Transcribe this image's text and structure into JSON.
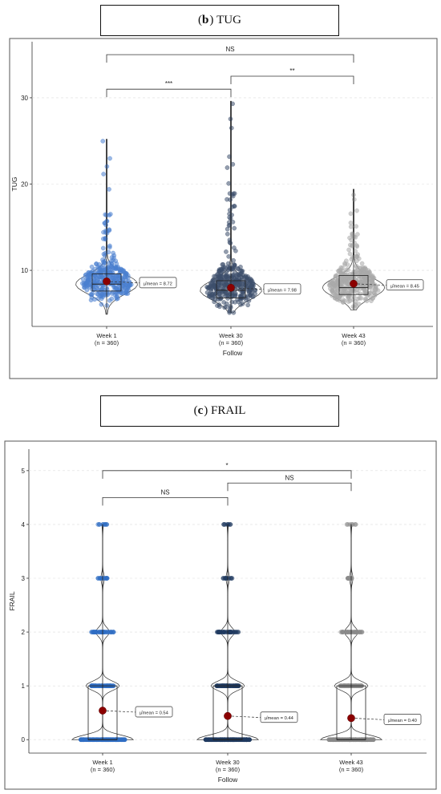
{
  "chart_data": [
    {
      "type": "violin-box-scatter",
      "panel_letter": "b",
      "title": "TUG",
      "xlabel": "Follow",
      "ylabel": "TUG",
      "ylim": [
        3.5,
        36.5
      ],
      "yticks": [
        10,
        20,
        30
      ],
      "categories": [
        "Week 1",
        "Week 30",
        "Week 43"
      ],
      "counts": [
        "(n = 360)",
        "(n = 360)",
        "(n = 360)"
      ],
      "point_colors": [
        "#4a7fcf",
        "#3d4e6b",
        "#a9a9a9"
      ],
      "groups": [
        {
          "q1": 7.6,
          "median": 8.4,
          "q3": 9.6,
          "whisker_low": 4.9,
          "whisker_high": 25.2,
          "mean": 8.72,
          "mean_label": "8.72"
        },
        {
          "q1": 6.8,
          "median": 7.7,
          "q3": 8.8,
          "whisker_low": 5.1,
          "whisker_high": 29.6,
          "mean": 7.98,
          "mean_label": "7.98"
        },
        {
          "q1": 7.2,
          "median": 8.0,
          "q3": 9.4,
          "whisker_low": 5.4,
          "whisker_high": 19.4,
          "mean": 8.45,
          "mean_label": "8.45"
        }
      ],
      "mean_label_prefix": "μ̂mean = ",
      "comparisons": [
        {
          "from": 0,
          "to": 2,
          "label": "NS",
          "y": 35.0
        },
        {
          "from": 1,
          "to": 2,
          "label": "**",
          "y": 32.5
        },
        {
          "from": 0,
          "to": 1,
          "label": "***",
          "y": 31.0
        }
      ],
      "grid": "horizontal dashed"
    },
    {
      "type": "violin-box-scatter",
      "panel_letter": "c",
      "title": "FRAIL",
      "xlabel": "Follow",
      "ylabel": "FRAIL",
      "ylim": [
        -0.25,
        5.4
      ],
      "yticks": [
        0,
        1,
        2,
        3,
        4,
        5
      ],
      "categories": [
        "Week 1",
        "Week 30",
        "Week 43"
      ],
      "counts": [
        "(n = 360)",
        "(n = 360)",
        "(n = 360)"
      ],
      "point_colors": [
        "#2f6dc4",
        "#1f3a5f",
        "#8a8a8a"
      ],
      "groups": [
        {
          "q1": 0,
          "median": 0,
          "q3": 1,
          "whisker_low": 0,
          "whisker_high": 4,
          "mean": 0.54,
          "mean_label": "0.54"
        },
        {
          "q1": 0,
          "median": 0,
          "q3": 1,
          "whisker_low": 0,
          "whisker_high": 4,
          "mean": 0.44,
          "mean_label": "0.44"
        },
        {
          "q1": 0,
          "median": 0,
          "q3": 1,
          "whisker_low": 0,
          "whisker_high": 4,
          "mean": 0.4,
          "mean_label": "0.40"
        }
      ],
      "mean_label_prefix": "μ̂mean = ",
      "comparisons": [
        {
          "from": 0,
          "to": 2,
          "label": "*",
          "y": 5.0
        },
        {
          "from": 1,
          "to": 2,
          "label": "NS",
          "y": 4.77
        },
        {
          "from": 0,
          "to": 1,
          "label": "NS",
          "y": 4.5
        }
      ],
      "grid": "horizontal dashed"
    }
  ]
}
